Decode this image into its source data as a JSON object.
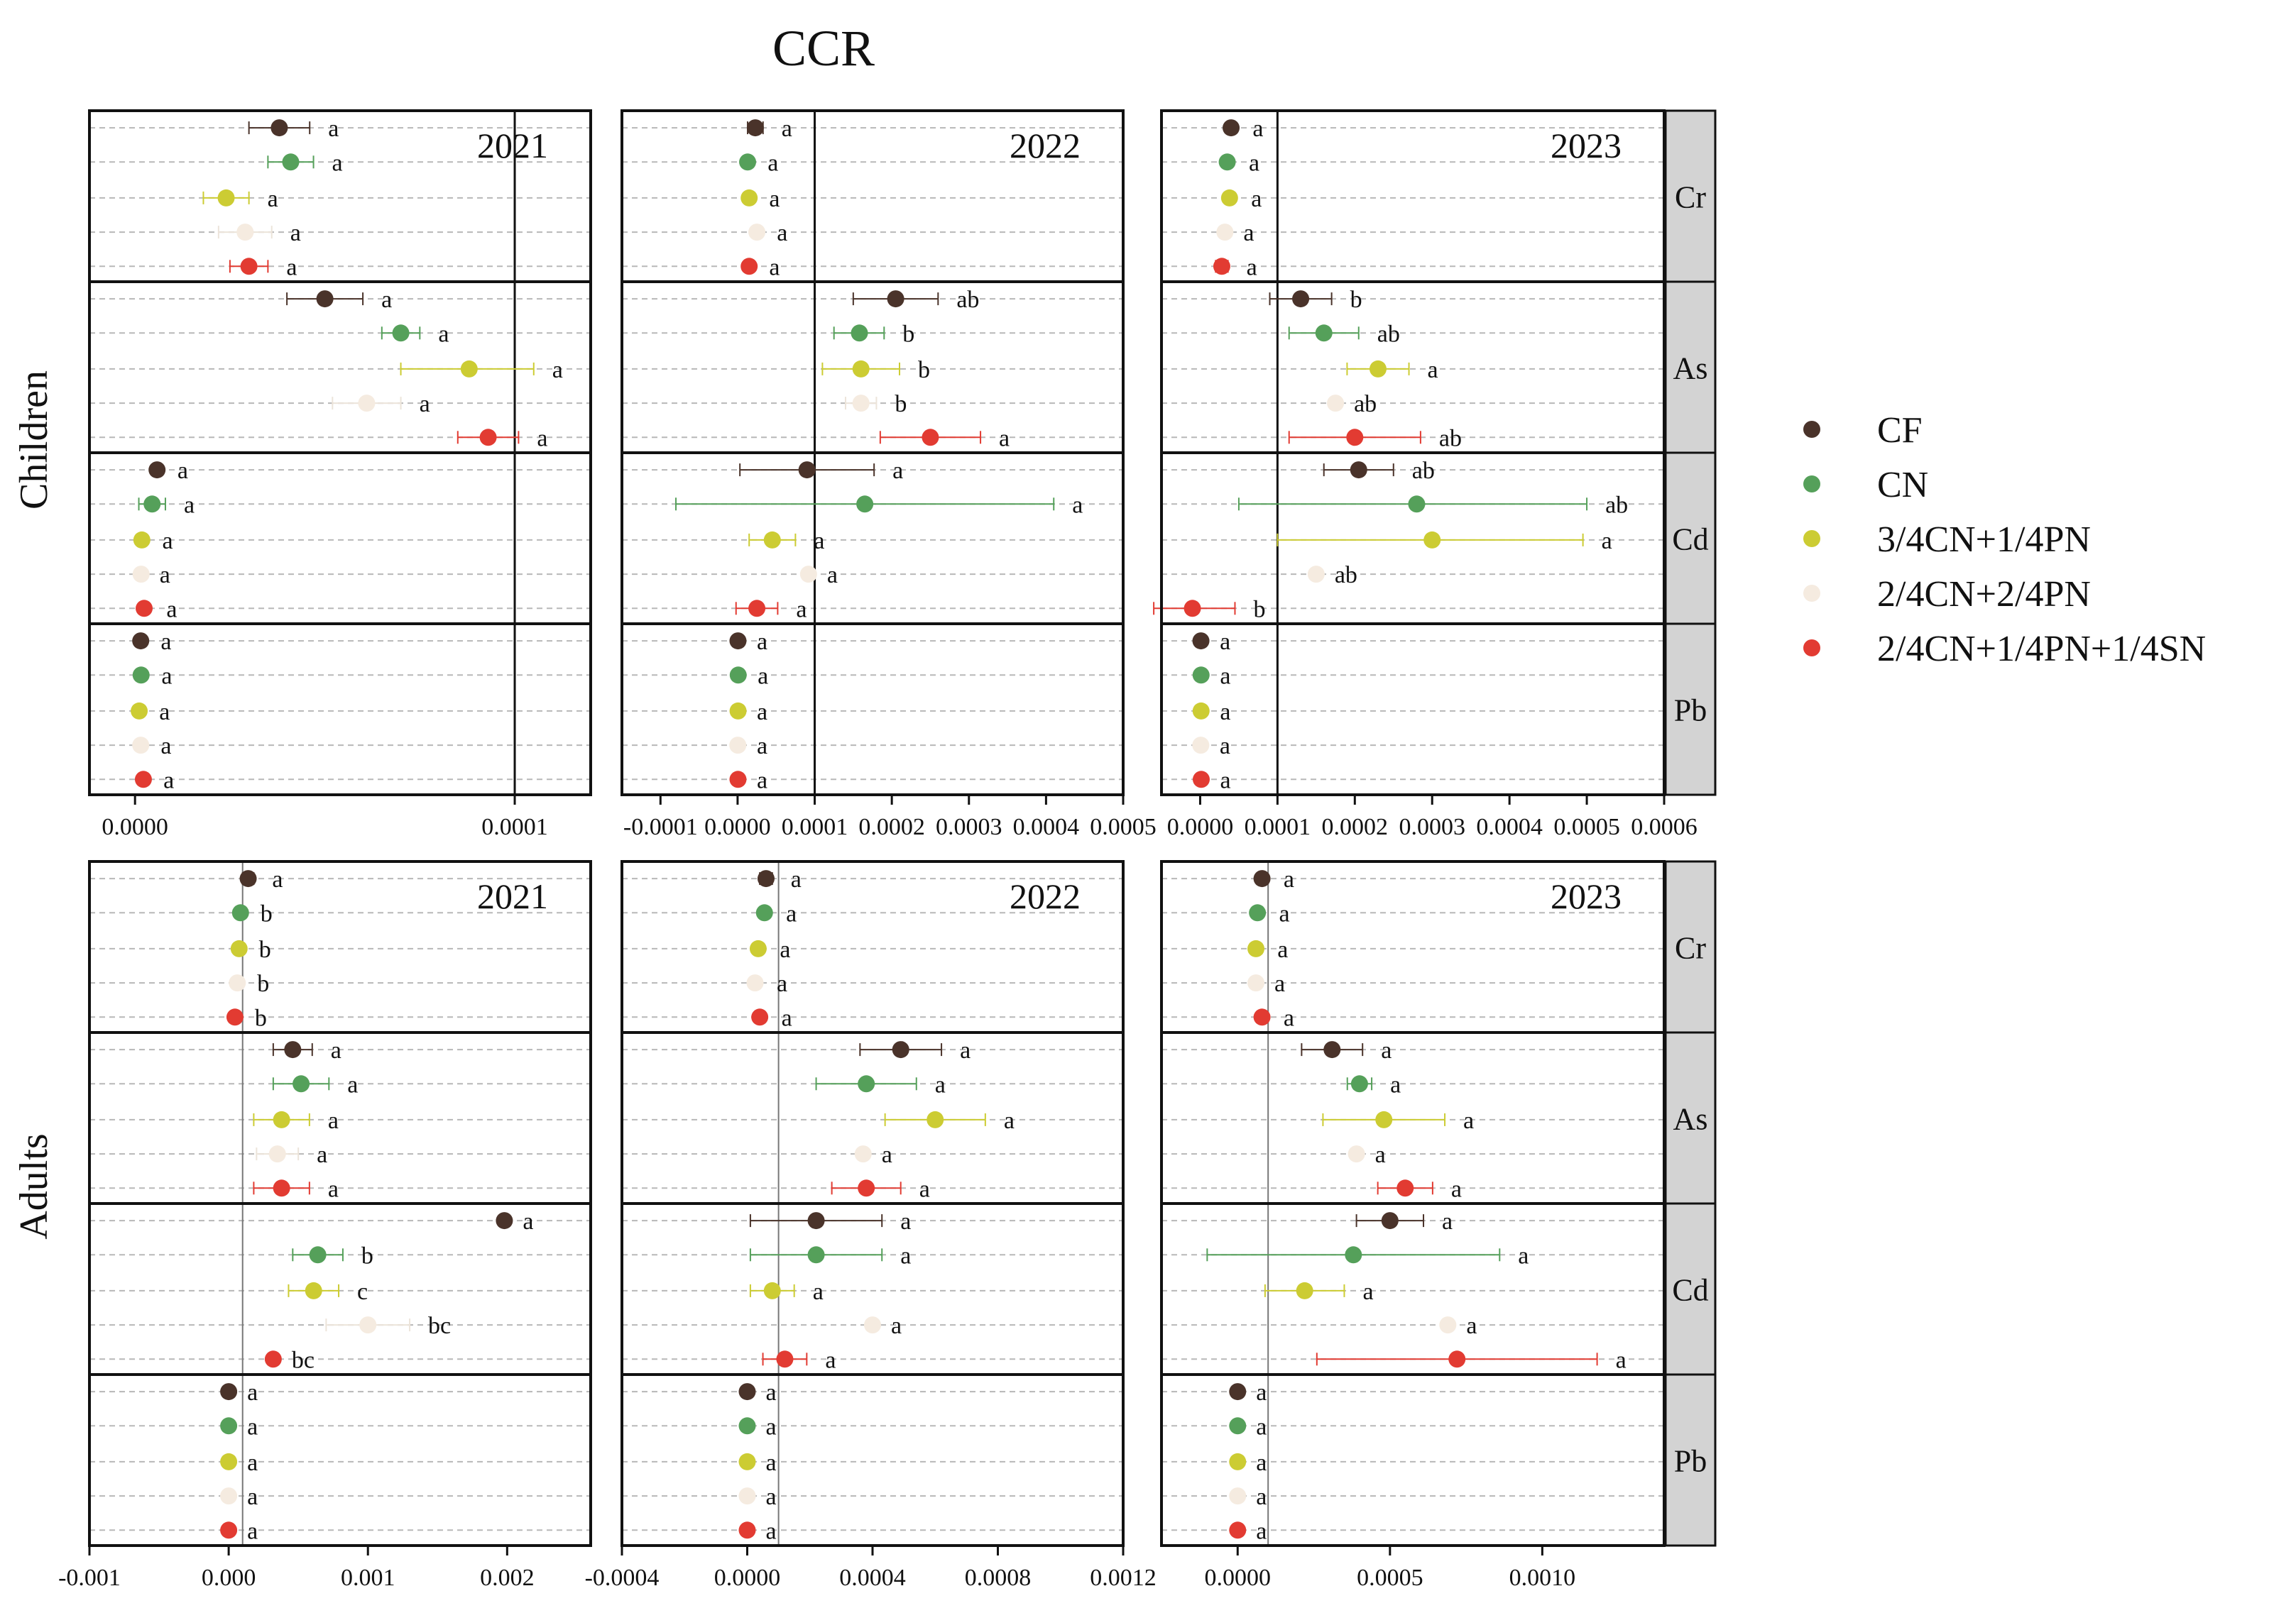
{
  "figure": {
    "title": "CCR",
    "row_labels": [
      "Children",
      "Adults"
    ],
    "years": [
      "2021",
      "2022",
      "2023"
    ],
    "elements": [
      "Cr",
      "As",
      "Cd",
      "Pb"
    ],
    "treatments": [
      "CF",
      "CN",
      "3/4CN+1/4PN",
      "2/4CN+2/4PN",
      "2/4CN+1/4PN+1/4SN"
    ],
    "colors": {
      "CF": "#4a332a",
      "CN": "#55a05a",
      "3/4CN+1/4PN": "#cccc33",
      "2/4CN+2/4PN": "#f5ebe0",
      "2/4CN+1/4PN+1/4SN": "#e23b32"
    },
    "legend": {
      "position": "right",
      "items": [
        "CF",
        "CN",
        "3/4CN+1/4PN",
        "2/4CN+2/4PN",
        "2/4CN+1/4PN+1/4SN"
      ]
    },
    "strip_fill": "#d3d3d3"
  },
  "chart_data": [
    {
      "type": "scatter",
      "title": "2021",
      "group": "Children",
      "xlim": [
        -1.2e-05,
        0.00012
      ],
      "xticks": [
        0.0,
        0.0001
      ],
      "xtick_labels": [
        "0.0000",
        "0.0001"
      ],
      "ref_line": 0.0001,
      "facets": {
        "Cr": {
          "mean": [
            3.8e-05,
            4.1e-05,
            2.4e-05,
            2.9e-05,
            3e-05
          ],
          "lo": [
            3e-05,
            3.5e-05,
            1.8e-05,
            2.2e-05,
            2.5e-05
          ],
          "hi": [
            4.6e-05,
            4.7e-05,
            3e-05,
            3.6e-05,
            3.5e-05
          ],
          "letters": [
            "a",
            "a",
            "a",
            "a",
            "a"
          ]
        },
        "As": {
          "mean": [
            5e-05,
            7e-05,
            8.8e-05,
            6.1e-05,
            9.3e-05
          ],
          "lo": [
            4e-05,
            6.5e-05,
            7e-05,
            5.2e-05,
            8.5e-05
          ],
          "hi": [
            6e-05,
            7.5e-05,
            0.000105,
            7e-05,
            0.000101
          ],
          "letters": [
            "a",
            "a",
            "a",
            "a",
            "a"
          ]
        },
        "Cd": {
          "mean": [
            5.8e-06,
            4.5e-06,
            1.8e-06,
            1.6e-06,
            2.4e-06
          ],
          "lo": [
            5.3e-06,
            1e-06,
            1.3e-06,
            1.6e-06,
            1.4e-06
          ],
          "hi": [
            6.3e-06,
            8e-06,
            2.3e-06,
            1.6e-06,
            3.4e-06
          ],
          "letters": [
            "a",
            "a",
            "a",
            "a",
            "a"
          ]
        },
        "Pb": {
          "mean": [
            1.5e-06,
            1.6e-06,
            1.1e-06,
            1.5e-06,
            2.2e-06
          ],
          "lo": [
            1.1e-06,
            1.1e-06,
            7e-07,
            1.1e-06,
            1.8e-06
          ],
          "hi": [
            1.9e-06,
            2.1e-06,
            1.5e-06,
            1.9e-06,
            2.6e-06
          ],
          "letters": [
            "a",
            "a",
            "a",
            "a",
            "a"
          ]
        }
      }
    },
    {
      "type": "scatter",
      "title": "2022",
      "group": "Children",
      "xlim": [
        -0.00015,
        0.0005
      ],
      "xticks": [
        -0.0001,
        0.0,
        0.0001,
        0.0002,
        0.0003,
        0.0004,
        0.0005
      ],
      "xtick_labels": [
        "-0.0001",
        "0.0000",
        "0.0001",
        "0.0002",
        "0.0003",
        "0.0004",
        "0.0005"
      ],
      "ref_line": 0.0001,
      "facets": {
        "Cr": {
          "mean": [
            2.3e-05,
            1.3e-05,
            1.5e-05,
            2.5e-05,
            1.5e-05
          ],
          "lo": [
            1.3e-05,
            1.1e-05,
            1.3e-05,
            2.3e-05,
            1.3e-05
          ],
          "hi": [
            3.3e-05,
            1.5e-05,
            1.7e-05,
            2.7e-05,
            1.7e-05
          ],
          "letters": [
            "a",
            "a",
            "a",
            "a",
            "a"
          ]
        },
        "As": {
          "mean": [
            0.000205,
            0.000158,
            0.00016,
            0.00016,
            0.00025
          ],
          "lo": [
            0.00015,
            0.000125,
            0.00011,
            0.00014,
            0.000185
          ],
          "hi": [
            0.00026,
            0.00019,
            0.00021,
            0.00018,
            0.000315
          ],
          "letters": [
            "ab",
            "b",
            "b",
            "b",
            "a"
          ]
        },
        "Cd": {
          "mean": [
            9e-05,
            0.000165,
            4.5e-05,
            9.2e-05,
            2.5e-05
          ],
          "lo": [
            3e-06,
            -8e-05,
            1.5e-05,
            9.2e-05,
            -2e-06
          ],
          "hi": [
            0.000177,
            0.00041,
            7.5e-05,
            9.2e-05,
            5.2e-05
          ],
          "letters": [
            "a",
            "a",
            "a",
            "a",
            "a"
          ]
        },
        "Pb": {
          "mean": [
            5e-07,
            8e-07,
            6e-07,
            3e-07,
            5e-07
          ],
          "lo": [
            0.0,
            0.0,
            0.0,
            0.0,
            0.0
          ],
          "hi": [
            1e-06,
            2e-06,
            1e-06,
            1e-06,
            1e-06
          ],
          "letters": [
            "a",
            "a",
            "a",
            "a",
            "a"
          ]
        }
      }
    },
    {
      "type": "scatter",
      "title": "2023",
      "group": "Children",
      "xlim": [
        -5e-05,
        0.0006
      ],
      "xticks": [
        0.0,
        0.0001,
        0.0002,
        0.0003,
        0.0004,
        0.0005,
        0.0006
      ],
      "xtick_labels": [
        "0.0000",
        "0.0001",
        "0.0002",
        "0.0003",
        "0.0004",
        "0.0005",
        "0.0006"
      ],
      "ref_line": 0.0001,
      "facets": {
        "Cr": {
          "mean": [
            4e-05,
            3.5e-05,
            3.8e-05,
            3.2e-05,
            2.8e-05
          ],
          "lo": [
            3.6e-05,
            3.1e-05,
            3.4e-05,
            3.2e-05,
            2e-05
          ],
          "hi": [
            4.4e-05,
            3.9e-05,
            4.2e-05,
            3.2e-05,
            3.6e-05
          ],
          "letters": [
            "a",
            "a",
            "a",
            "a",
            "a"
          ]
        },
        "As": {
          "mean": [
            0.00013,
            0.00016,
            0.00023,
            0.000175,
            0.0002
          ],
          "lo": [
            9e-05,
            0.000115,
            0.00019,
            0.000175,
            0.000115
          ],
          "hi": [
            0.00017,
            0.000205,
            0.00027,
            0.000175,
            0.000285
          ],
          "letters": [
            "b",
            "ab",
            "a",
            "ab",
            "ab"
          ]
        },
        "Cd": {
          "mean": [
            0.000205,
            0.00028,
            0.0003,
            0.00015,
            -1e-05
          ],
          "lo": [
            0.00016,
            5e-05,
            0.0001,
            0.00015,
            -6e-05
          ],
          "hi": [
            0.00025,
            0.0005,
            0.000495,
            0.00015,
            4.5e-05
          ],
          "letters": [
            "ab",
            "ab",
            "a",
            "ab",
            "b"
          ]
        },
        "Pb": {
          "mean": [
            1e-06,
            1.2e-06,
            1.2e-06,
            8e-07,
            1.4e-06
          ],
          "lo": [
            5e-07,
            7e-07,
            7e-07,
            3e-07,
            9e-07
          ],
          "hi": [
            1.5e-06,
            1.7e-06,
            1.7e-06,
            1.3e-06,
            1.9e-06
          ],
          "letters": [
            "a",
            "a",
            "a",
            "a",
            "a"
          ]
        }
      }
    },
    {
      "type": "scatter",
      "title": "2021",
      "group": "Adults",
      "xlim": [
        -0.001,
        0.0026
      ],
      "xticks": [
        -0.001,
        0.0,
        0.001,
        0.002
      ],
      "xtick_labels": [
        "-0.001",
        "0.000",
        "0.001",
        "0.002"
      ],
      "ref_line": 0.0001,
      "facets": {
        "Cr": {
          "mean": [
            0.00014,
            8.5e-05,
            7.5e-05,
            6.2e-05,
            4.5e-05
          ],
          "lo": [
            0.0001,
            7.5e-05,
            6.5e-05,
            5.2e-05,
            3.5e-05
          ],
          "hi": [
            0.00018,
            9.5e-05,
            8.5e-05,
            7.2e-05,
            5.5e-05
          ],
          "letters": [
            "a",
            "b",
            "b",
            "b",
            "b"
          ]
        },
        "As": {
          "mean": [
            0.00046,
            0.00052,
            0.00038,
            0.00035,
            0.00038
          ],
          "lo": [
            0.00032,
            0.00032,
            0.00018,
            0.0002,
            0.00018
          ],
          "hi": [
            0.0006,
            0.00072,
            0.00058,
            0.0005,
            0.00058
          ],
          "letters": [
            "a",
            "a",
            "a",
            "a",
            "a"
          ]
        },
        "Cd": {
          "mean": [
            0.00198,
            0.00064,
            0.00061,
            0.001,
            0.00032
          ],
          "lo": [
            0.00198,
            0.00046,
            0.00043,
            0.0007,
            0.00032
          ],
          "hi": [
            0.00198,
            0.00082,
            0.00079,
            0.0013,
            0.00032
          ],
          "letters": [
            "a",
            "b",
            "c",
            "bc",
            "bc"
          ]
        },
        "Pb": {
          "mean": [
            0.0,
            0.0,
            0.0,
            0.0,
            0.0
          ],
          "lo": [
            0.0,
            0.0,
            0.0,
            0.0,
            0.0
          ],
          "hi": [
            0.0,
            0.0,
            0.0,
            0.0,
            0.0
          ],
          "letters": [
            "a",
            "a",
            "a",
            "a",
            "a"
          ]
        }
      }
    },
    {
      "type": "scatter",
      "title": "2022",
      "group": "Adults",
      "xlim": [
        -0.0004,
        0.0012
      ],
      "xticks": [
        -0.0004,
        0.0,
        0.0004,
        0.0008,
        0.0012
      ],
      "xtick_labels": [
        "-0.0004",
        "0.0000",
        "0.0004",
        "0.0008",
        "0.0012"
      ],
      "ref_line": 0.0001,
      "facets": {
        "Cr": {
          "mean": [
            6e-05,
            5.5e-05,
            3.5e-05,
            2.5e-05,
            4e-05
          ],
          "lo": [
            4e-05,
            4.5e-05,
            2.5e-05,
            1.5e-05,
            3e-05
          ],
          "hi": [
            8e-05,
            6.5e-05,
            4.5e-05,
            3.5e-05,
            5e-05
          ],
          "letters": [
            "a",
            "a",
            "a",
            "a",
            "a"
          ]
        },
        "As": {
          "mean": [
            0.00049,
            0.00038,
            0.0006,
            0.00037,
            0.00038
          ],
          "lo": [
            0.00036,
            0.00022,
            0.00044,
            0.00037,
            0.00027
          ],
          "hi": [
            0.00062,
            0.00054,
            0.00076,
            0.00037,
            0.00049
          ],
          "letters": [
            "a",
            "a",
            "a",
            "a",
            "a"
          ]
        },
        "Cd": {
          "mean": [
            0.00022,
            0.00022,
            8e-05,
            0.0004,
            0.00012
          ],
          "lo": [
            1e-05,
            1e-05,
            1e-05,
            0.0004,
            5e-05
          ],
          "hi": [
            0.00043,
            0.00043,
            0.00015,
            0.0004,
            0.00019
          ],
          "letters": [
            "a",
            "a",
            "a",
            "a",
            "a"
          ]
        },
        "Pb": {
          "mean": [
            0.0,
            0.0,
            0.0,
            0.0,
            0.0
          ],
          "lo": [
            0.0,
            0.0,
            0.0,
            0.0,
            0.0
          ],
          "hi": [
            0.0,
            0.0,
            0.0,
            0.0,
            0.0
          ],
          "letters": [
            "a",
            "a",
            "a",
            "a",
            "a"
          ]
        }
      }
    },
    {
      "type": "scatter",
      "title": "2023",
      "group": "Adults",
      "xlim": [
        -0.00025,
        0.0014
      ],
      "xticks": [
        0.0,
        0.0005,
        0.001
      ],
      "xtick_labels": [
        "0.0000",
        "0.0005",
        "0.0010"
      ],
      "ref_line": 0.0001,
      "facets": {
        "Cr": {
          "mean": [
            8e-05,
            6.5e-05,
            6e-05,
            6e-05,
            8e-05
          ],
          "lo": [
            7e-05,
            5.5e-05,
            5e-05,
            6e-05,
            7e-05
          ],
          "hi": [
            9e-05,
            7.5e-05,
            7e-05,
            6e-05,
            9e-05
          ],
          "letters": [
            "a",
            "a",
            "a",
            "a",
            "a"
          ]
        },
        "As": {
          "mean": [
            0.00031,
            0.0004,
            0.00048,
            0.00039,
            0.00055
          ],
          "lo": [
            0.00021,
            0.00036,
            0.00028,
            0.00039,
            0.00046
          ],
          "hi": [
            0.00041,
            0.00044,
            0.00068,
            0.00039,
            0.00064
          ],
          "letters": [
            "a",
            "a",
            "a",
            "a",
            "a"
          ]
        },
        "Cd": {
          "mean": [
            0.0005,
            0.00038,
            0.00022,
            0.00069,
            0.00072
          ],
          "lo": [
            0.00039,
            -0.0001,
            9e-05,
            0.00069,
            0.00026
          ],
          "hi": [
            0.00061,
            0.00086,
            0.00035,
            0.00069,
            0.00118
          ],
          "letters": [
            "a",
            "a",
            "a",
            "a",
            "a"
          ]
        },
        "Pb": {
          "mean": [
            0.0,
            0.0,
            0.0,
            0.0,
            0.0
          ],
          "lo": [
            0.0,
            0.0,
            0.0,
            0.0,
            0.0
          ],
          "hi": [
            0.0,
            0.0,
            0.0,
            0.0,
            0.0
          ],
          "letters": [
            "a",
            "a",
            "a",
            "a",
            "a"
          ]
        }
      }
    }
  ]
}
